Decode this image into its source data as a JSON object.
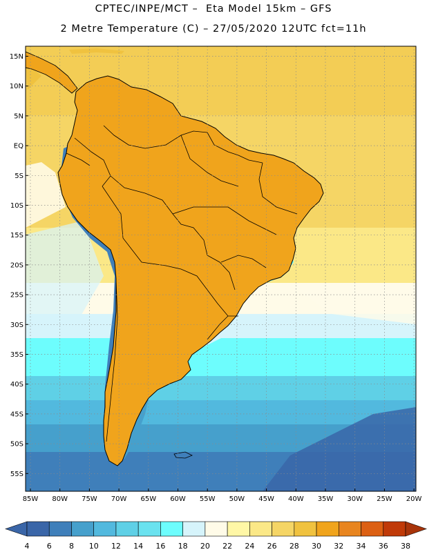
{
  "header": {
    "title_line1": "CPTEC/INPE/MCT –  Eta Model 15km – GFS",
    "title_line2": "2 Metre Temperature (C) – 27/05/2020 12UTC fct=11h"
  },
  "axes": {
    "lat_labels": [
      "15N",
      "10N",
      "5N",
      "EQ",
      "5S",
      "10S",
      "15S",
      "20S",
      "25S",
      "30S",
      "35S",
      "40S",
      "45S",
      "50S",
      "55S"
    ],
    "lon_labels": [
      "85W",
      "80W",
      "75W",
      "70W",
      "65W",
      "60W",
      "55W",
      "50W",
      "45W",
      "40W",
      "35W",
      "30W",
      "25W",
      "20W"
    ]
  },
  "legend": {
    "ticks": [
      "4",
      "6",
      "8",
      "10",
      "12",
      "14",
      "16",
      "18",
      "20",
      "22",
      "24",
      "26",
      "28",
      "30",
      "32",
      "34",
      "36",
      "38"
    ],
    "colors": [
      "#3a66a8",
      "#3f7fba",
      "#46a0cc",
      "#52b9de",
      "#5fd0e6",
      "#6ae2ef",
      "#6dfdfd",
      "#d6f4fb",
      "#fffbe8",
      "#fff7a6",
      "#fbe887",
      "#f5d565",
      "#f0c23f",
      "#f0a41c",
      "#e8851f",
      "#dc6013",
      "#c03a08",
      "#a8340a"
    ]
  },
  "map_data": {
    "projection": "lat-lon",
    "lon_range": [
      -85,
      -20
    ],
    "lat_range": [
      -57,
      16
    ],
    "field": "2 Metre Temperature",
    "units": "C"
  }
}
